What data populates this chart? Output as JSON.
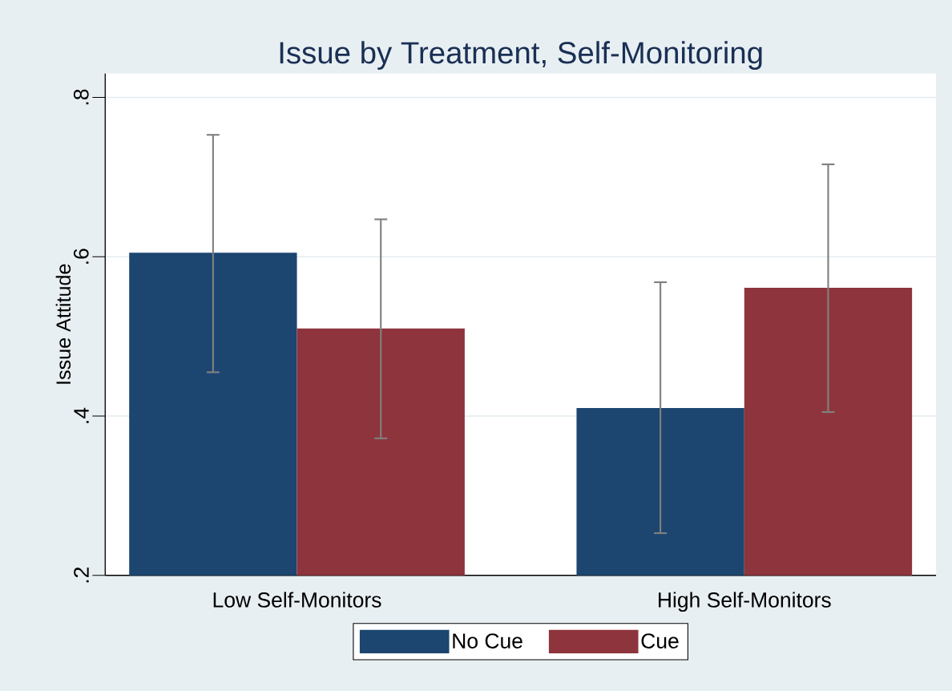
{
  "chart_data": {
    "type": "bar",
    "title": "Issue by Treatment, Self-Monitoring",
    "ylabel": "Issue Attitude",
    "categories": [
      "Low Self-Monitors",
      "High Self-Monitors"
    ],
    "series": [
      {
        "name": "No Cue",
        "color": "#1c4670",
        "values": [
          0.605,
          0.41
        ],
        "errors": [
          [
            0.455,
            0.753
          ],
          [
            0.253,
            0.568
          ]
        ]
      },
      {
        "name": "Cue",
        "color": "#8e343c",
        "values": [
          0.51,
          0.561
        ],
        "errors": [
          [
            0.372,
            0.647
          ],
          [
            0.405,
            0.716
          ]
        ]
      }
    ],
    "ylim": [
      0.2,
      0.83
    ],
    "yticks": [
      {
        "value": 0.2,
        "label": ".2"
      },
      {
        "value": 0.4,
        "label": ".4"
      },
      {
        "value": 0.6,
        "label": ".6"
      },
      {
        "value": 0.8,
        "label": ".8"
      }
    ],
    "grid": "y",
    "legend": "bottom"
  }
}
